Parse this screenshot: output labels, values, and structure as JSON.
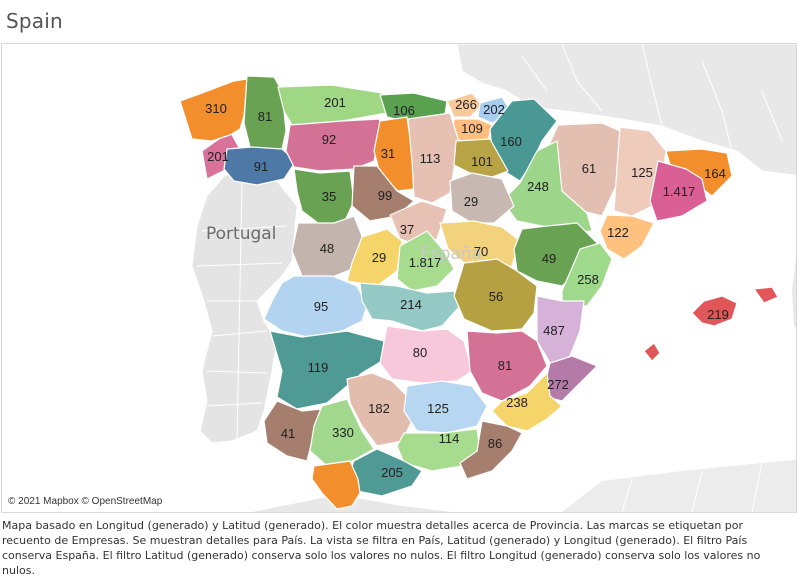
{
  "title": "Spain",
  "attribution": "© 2021 Mapbox © OpenStreetMap",
  "caption": "Mapa basado en Longitud (generado) y Latitud (generado).  El color muestra detalles acerca de Provincia.  Las marcas se etiquetan por recuento de Empresas.  Se muestran detalles para País. La vista se filtra en País, Latitud (generado) y Longitud (generado). El filtro País conserva España. El filtro Latitud (generado) conserva solo los valores no nulos. El filtro Longitud (generado) conserva solo los valores no nulos.",
  "country_labels": {
    "portugal": "Portugal",
    "spain": "España"
  },
  "provinces": [
    {
      "id": "pontevedra",
      "value": "201",
      "color": "#d9729b"
    },
    {
      "id": "a-coruna",
      "value": "310",
      "color": "#f28e2b"
    },
    {
      "id": "lugo",
      "value": "81",
      "color": "#6aa253"
    },
    {
      "id": "asturias",
      "value": "201",
      "color": "#a0d785"
    },
    {
      "id": "cantabria",
      "value": "106",
      "color": "#59a14f"
    },
    {
      "id": "vizcaya",
      "value": "266",
      "color": "#f8c99a"
    },
    {
      "id": "guipuzcoa",
      "value": "202",
      "color": "#a9cdee"
    },
    {
      "id": "alava",
      "value": "109",
      "color": "#ffbe7d"
    },
    {
      "id": "navarra",
      "value": "160",
      "color": "#499894"
    },
    {
      "id": "ourense",
      "value": "91",
      "color": "#4e79a7"
    },
    {
      "id": "leon",
      "value": "92",
      "color": "#d37295"
    },
    {
      "id": "palencia",
      "value": "31",
      "color": "#f28e2b"
    },
    {
      "id": "burgos",
      "value": "113",
      "color": "#e5c0b3"
    },
    {
      "id": "la-rioja",
      "value": "101",
      "color": "#b8a346"
    },
    {
      "id": "huesca",
      "value": "61",
      "color": "#e2bfb0"
    },
    {
      "id": "lleida",
      "value": "125",
      "color": "#efcbbb"
    },
    {
      "id": "girona",
      "value": "164",
      "color": "#f28e2b"
    },
    {
      "id": "barcelona",
      "value": "1.417",
      "color": "#d95f95"
    },
    {
      "id": "zaragoza",
      "value": "248",
      "color": "#9dd68a"
    },
    {
      "id": "soria",
      "value": "29",
      "color": "#c7b8b1"
    },
    {
      "id": "zamora",
      "value": "35",
      "color": "#6aa253"
    },
    {
      "id": "valladolid",
      "value": "99",
      "color": "#a57e6e"
    },
    {
      "id": "segovia",
      "value": "37",
      "color": "#e7c2b4"
    },
    {
      "id": "tarragona",
      "value": "122",
      "color": "#ffc17d"
    },
    {
      "id": "salamanca",
      "value": "48",
      "color": "#c3b5ae"
    },
    {
      "id": "avila",
      "value": "29",
      "color": "#f5d46a"
    },
    {
      "id": "madrid",
      "value": "1.817",
      "color": "#a7dc8f"
    },
    {
      "id": "guadalajara",
      "value": "70",
      "color": "#f3d27d"
    },
    {
      "id": "teruel",
      "value": "49",
      "color": "#6aa253"
    },
    {
      "id": "castellon",
      "value": "258",
      "color": "#9fd98c"
    },
    {
      "id": "caceres",
      "value": "95",
      "color": "#b3d4f0"
    },
    {
      "id": "toledo",
      "value": "214",
      "color": "#95c9c5"
    },
    {
      "id": "cuenca",
      "value": "56",
      "color": "#b5a042"
    },
    {
      "id": "valencia",
      "value": "487",
      "color": "#d7b2d8"
    },
    {
      "id": "badajoz",
      "value": "119",
      "color": "#4f9a95"
    },
    {
      "id": "ciudad-real",
      "value": "80",
      "color": "#f6c8da"
    },
    {
      "id": "albacete",
      "value": "81",
      "color": "#d37295"
    },
    {
      "id": "alicante",
      "value": "272",
      "color": "#b47ba8"
    },
    {
      "id": "cordoba",
      "value": "182",
      "color": "#e2bdae"
    },
    {
      "id": "jaen",
      "value": "125",
      "color": "#b6d6f2"
    },
    {
      "id": "murcia",
      "value": "238",
      "color": "#f5d46a"
    },
    {
      "id": "huelva",
      "value": "41",
      "color": "#a57e6e"
    },
    {
      "id": "sevilla",
      "value": "330",
      "color": "#a2d88d"
    },
    {
      "id": "granada",
      "value": "114",
      "color": "#a7dc8f"
    },
    {
      "id": "almeria",
      "value": "86",
      "color": "#a57e6e"
    },
    {
      "id": "malaga",
      "value": "205",
      "color": "#4f9a95"
    },
    {
      "id": "cadiz",
      "value": "",
      "color": "#f28e2b"
    },
    {
      "id": "baleares",
      "value": "219",
      "color": "#e15759"
    }
  ]
}
